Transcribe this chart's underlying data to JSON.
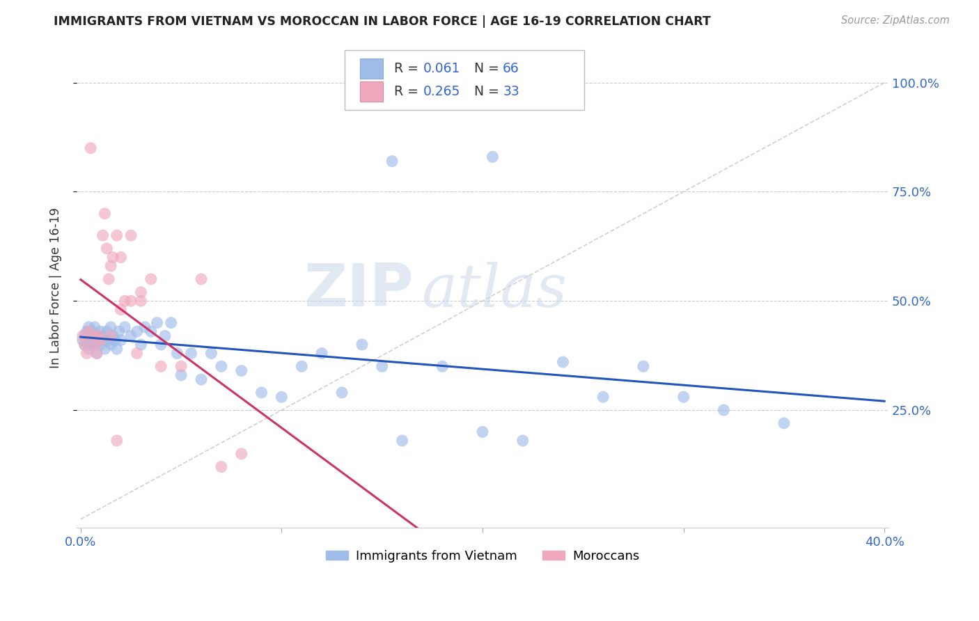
{
  "title": "IMMIGRANTS FROM VIETNAM VS MOROCCAN IN LABOR FORCE | AGE 16-19 CORRELATION CHART",
  "source": "Source: ZipAtlas.com",
  "ylabel": "In Labor Force | Age 16-19",
  "xlim": [
    -0.002,
    0.402
  ],
  "ylim": [
    -0.02,
    1.08
  ],
  "color_vietnam": "#a0bce8",
  "color_morocco": "#f0a8bc",
  "color_vietnam_line": "#2255bb",
  "color_morocco_line": "#cc3366",
  "color_diag": "#ccbbbb",
  "background": "#ffffff",
  "grid_color": "#cccccc",
  "legend_label1": "Immigrants from Vietnam",
  "legend_label2": "Moroccans"
}
